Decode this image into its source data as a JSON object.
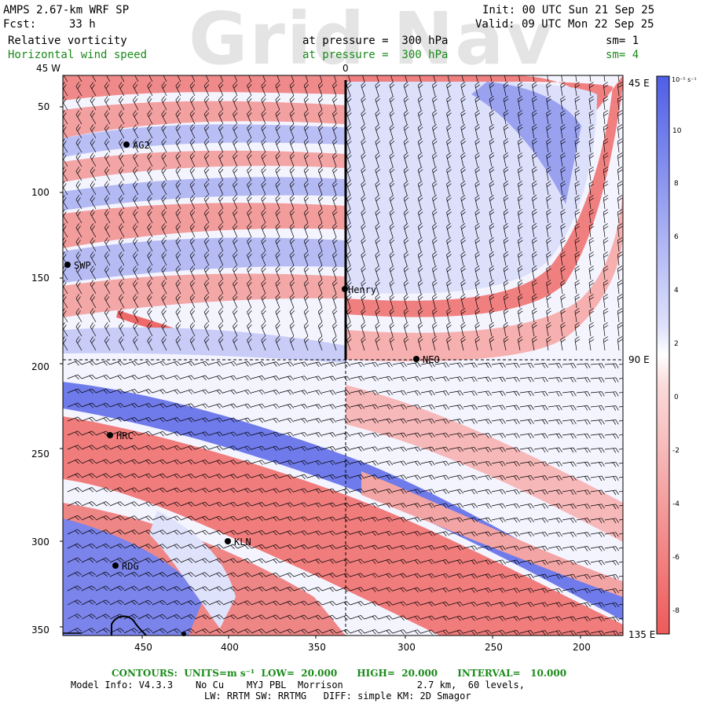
{
  "header": {
    "model": "AMPS 2.67-km WRF SP",
    "fcst_label": "Fcst:",
    "fcst_value": "33 h",
    "init": "Init: 00 UTC Sun 21 Sep 25",
    "valid": "Valid: 09 UTC Mon 22 Sep 25",
    "field1": "Relative vorticity",
    "field1_pressure": "at pressure =  300 hPa",
    "field1_sm": "sm= 1",
    "field2": "Horizontal wind speed",
    "field2_pressure": "at pressure =  300 hPa",
    "field2_sm": "sm= 4",
    "watermark": "Grid Nav"
  },
  "map": {
    "top_labels": [
      "45 W",
      "0"
    ],
    "right_labels": [
      "45 E",
      "90 E",
      "135 E"
    ],
    "y_ticks": [
      "50",
      "100",
      "150",
      "200",
      "250",
      "300",
      "350"
    ],
    "x_ticks": [
      "450",
      "400",
      "350",
      "300",
      "250",
      "200"
    ],
    "stations": [
      {
        "name": "AG2"
      },
      {
        "name": "SWP"
      },
      {
        "name": "Henry"
      },
      {
        "name": "NEO"
      },
      {
        "name": "HRC"
      },
      {
        "name": "KLN"
      },
      {
        "name": "RDG"
      }
    ],
    "colors": {
      "positive": "#5a66e8",
      "negative": "#ee5a5a",
      "zero": "#ffffff",
      "barbs": "#000000",
      "contour": "#000000"
    }
  },
  "colorbar": {
    "unit": "10⁻⁵ s⁻¹",
    "labels": [
      "10",
      "8",
      "6",
      "4",
      "2",
      "0",
      "-2",
      "-4",
      "-6",
      "-8"
    ]
  },
  "footer": {
    "contours": "CONTOURS:  UNITS=m s⁻¹  LOW=  20.000      HIGH=  20.000      INTERVAL=   10.000",
    "model_info": "Model Info: V4.3.3    No Cu    MYJ PBL  Morrison             2.7 km,  60 levels,",
    "model_info2": "LW: RRTM SW: RRTMG   DIFF: simple KM: 2D Smagor"
  }
}
